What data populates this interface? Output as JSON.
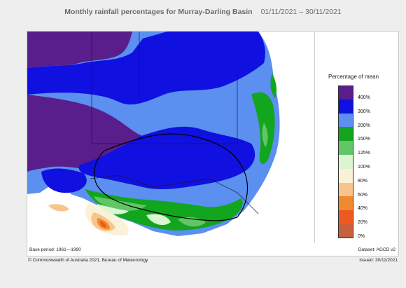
{
  "header": {
    "title": "Monthly rainfall percentages for Murray-Darling Basin",
    "date_range": "01/11/2021 – 30/11/2021"
  },
  "legend": {
    "title": "Percentage of mean",
    "items": [
      {
        "label": "400%",
        "color": "#5a1d8c"
      },
      {
        "label": "300%",
        "color": "#1010e0"
      },
      {
        "label": "200%",
        "color": "#5b8ff0"
      },
      {
        "label": "150%",
        "color": "#12a51e"
      },
      {
        "label": "125%",
        "color": "#62c566"
      },
      {
        "label": "100%",
        "color": "#d9f5d2"
      },
      {
        "label": "80%",
        "color": "#fbf1d6"
      },
      {
        "label": "60%",
        "color": "#f8c48e"
      },
      {
        "label": "40%",
        "color": "#f08a2e"
      },
      {
        "label": "20%",
        "color": "#ec5a22"
      },
      {
        "label": "0%",
        "color": "#c8613a"
      }
    ]
  },
  "footer": {
    "base_period": "Base period: 1961—1990",
    "dataset": "Dataset: AGCD v2",
    "copyright": "© Commonwealth of Australia 2021, Bureau of Meteorology",
    "issued": "Issued: 30/11/2021"
  }
}
